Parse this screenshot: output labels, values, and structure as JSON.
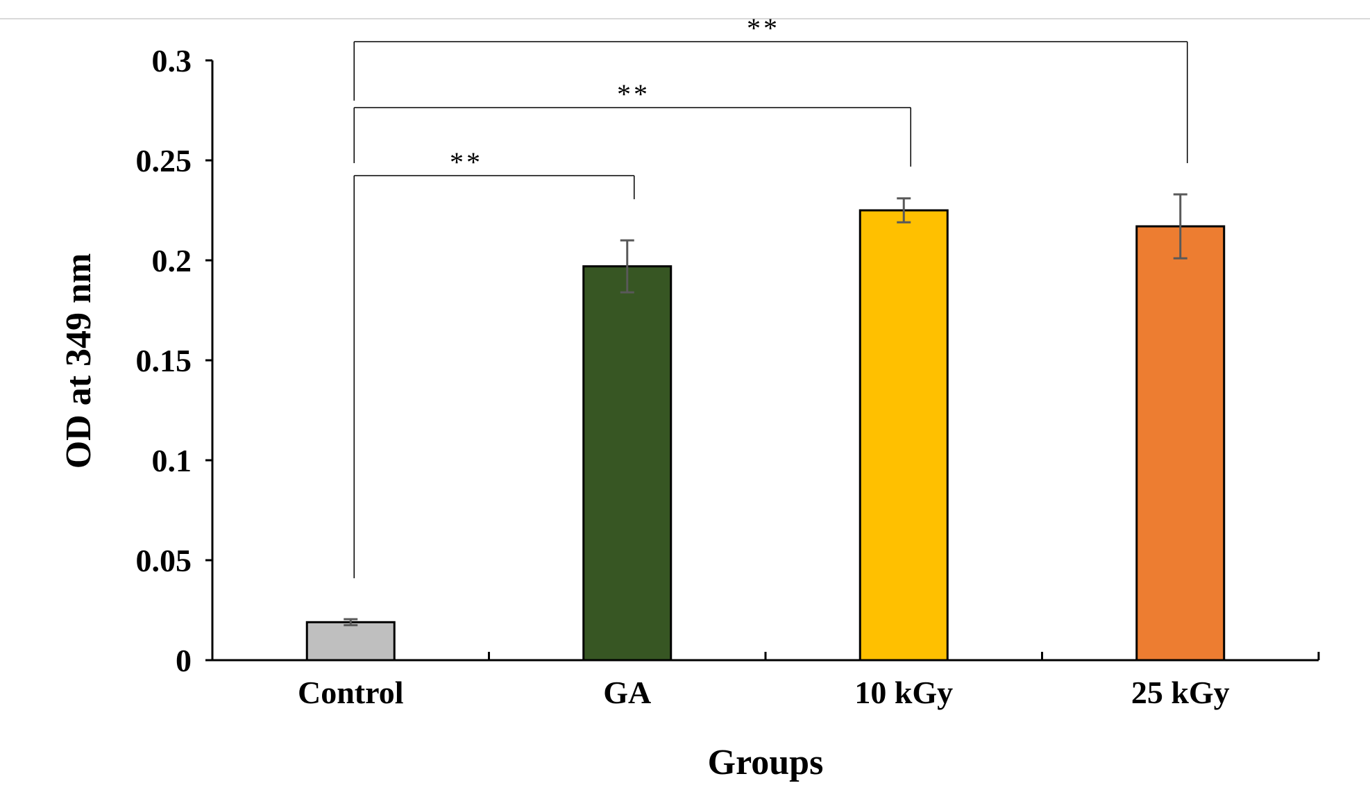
{
  "chart_data": {
    "type": "bar",
    "title": "",
    "xlabel": "Groups",
    "ylabel": "OD at 349 nm",
    "ylim": [
      0,
      0.3
    ],
    "yticks": [
      0,
      0.05,
      0.1,
      0.15,
      0.2,
      0.25,
      0.3
    ],
    "ytick_labels": [
      "0",
      "0.05",
      "0.1",
      "0.15",
      "0.2",
      "0.25",
      "0.3"
    ],
    "categories": [
      "Control",
      "GA",
      "10 kGy",
      "25 kGy"
    ],
    "values": [
      0.019,
      0.197,
      0.225,
      0.217
    ],
    "errors": [
      0.0015,
      0.013,
      0.006,
      0.016
    ],
    "colors": [
      "#BFBFBF",
      "#375623",
      "#FFC000",
      "#ED7D31"
    ],
    "significance": [
      {
        "from": "Control",
        "to": "GA",
        "label": "**"
      },
      {
        "from": "Control",
        "to": "10 kGy",
        "label": "**"
      },
      {
        "from": "Control",
        "to": "25 kGy",
        "label": "**"
      }
    ],
    "grid": false,
    "legend": "none"
  }
}
